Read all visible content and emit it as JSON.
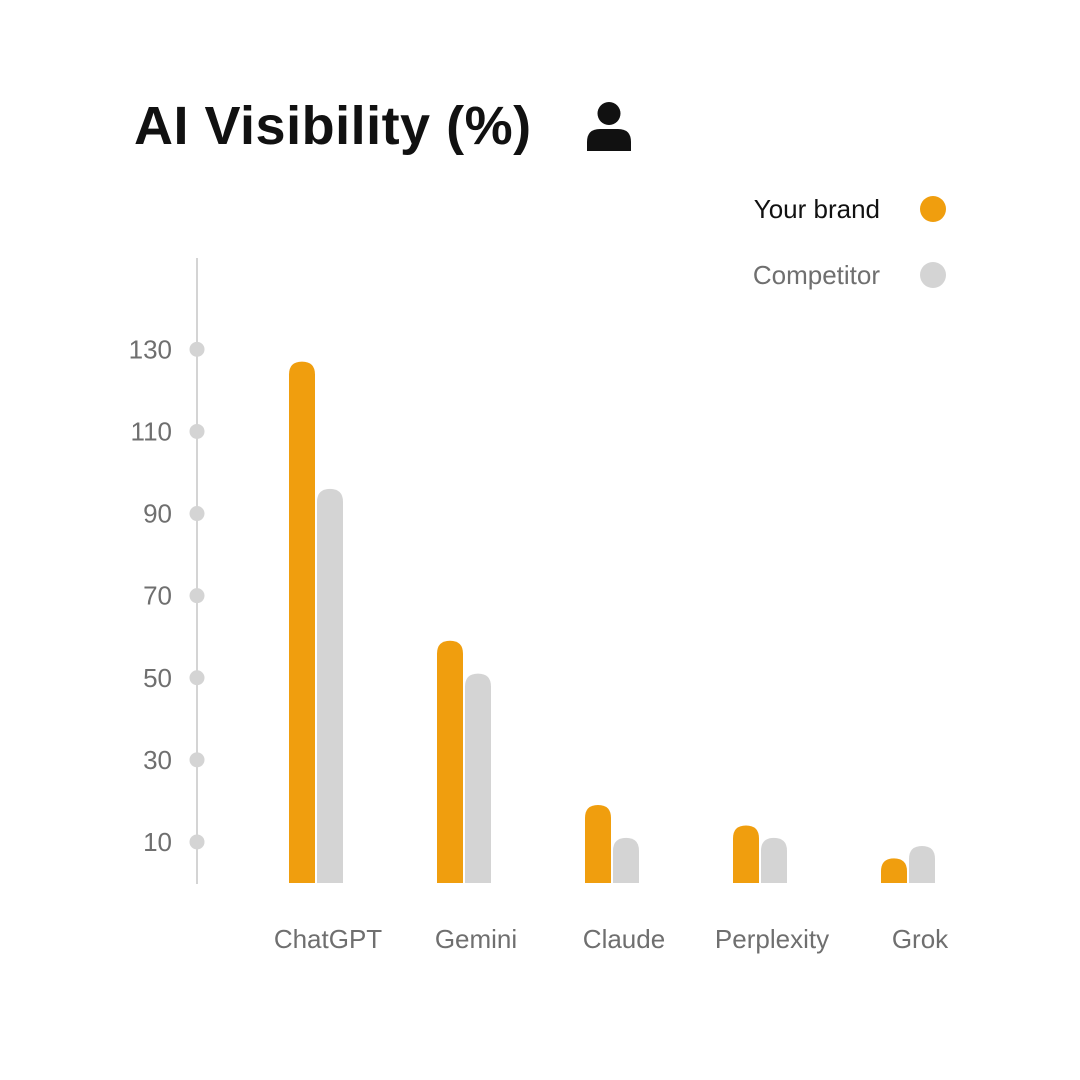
{
  "header": {
    "title": "AI Visibility (%)",
    "icon": "user-icon"
  },
  "legend": [
    {
      "label": "Your brand",
      "color": "#F09E0E"
    },
    {
      "label": "Competitor",
      "color": "#D4D4D4"
    }
  ],
  "chart_data": {
    "type": "bar",
    "title": "AI Visibility (%)",
    "xlabel": "",
    "ylabel": "",
    "categories": [
      "ChatGPT",
      "Gemini",
      "Claude",
      "Perplexity",
      "Grok"
    ],
    "series": [
      {
        "name": "Your brand",
        "color": "#F09E0E",
        "values": [
          127,
          59,
          19,
          14,
          6
        ]
      },
      {
        "name": "Competitor",
        "color": "#D4D4D4",
        "values": [
          96,
          51,
          11,
          11,
          9
        ]
      }
    ],
    "y_ticks": [
      10,
      30,
      50,
      70,
      90,
      110,
      130
    ],
    "ylim": [
      0,
      130
    ],
    "grid": false,
    "legend_position": "top-right",
    "tick_color": "#D4D4D4",
    "axis_color": "#D4D4D4",
    "label_color": "#6F6F6F"
  }
}
